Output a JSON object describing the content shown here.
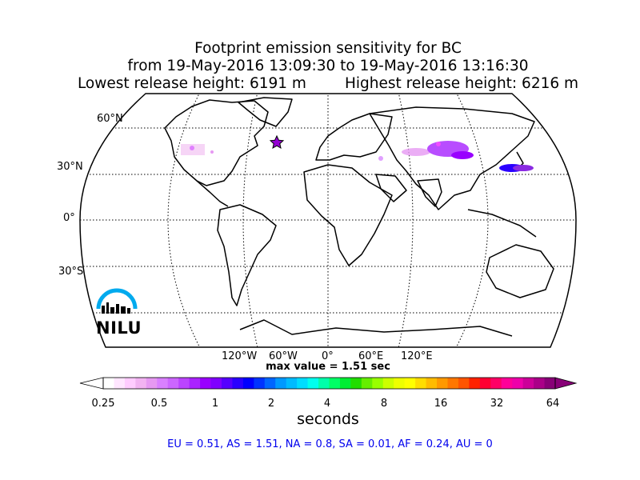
{
  "title": {
    "line1": "Footprint emission sensitivity for BC",
    "line2": "from 19-May-2016 13:09:30 to 19-May-2016 13:16:30",
    "line3_left": "Lowest release height: 6191 m",
    "line3_right": "Highest release height: 6216 m"
  },
  "map": {
    "projection": "robinson",
    "lat_labels": [
      "60°N",
      "30°N",
      "0°",
      "30°S"
    ],
    "lon_labels": [
      "120°W",
      "60°W",
      "0°",
      "60°E",
      "120°E"
    ],
    "marker": {
      "symbol": "star",
      "color": "#9400d3",
      "lat": 46,
      "lon": -30
    }
  },
  "max_value": "max value = 1.51 sec",
  "colorbar": {
    "ticks": [
      "0.25",
      "0.5",
      "1",
      "2",
      "4",
      "8",
      "16",
      "32",
      "64"
    ],
    "unit": "seconds",
    "colors": [
      "#ffffff",
      "#ffe6ff",
      "#ffccff",
      "#f2b3f2",
      "#e699f2",
      "#d980ff",
      "#cc66ff",
      "#bb44ff",
      "#aa22ff",
      "#9900ff",
      "#7f00ff",
      "#5500ff",
      "#2a00ff",
      "#0000ff",
      "#0033ff",
      "#0066ff",
      "#0099ff",
      "#00bbff",
      "#00ddff",
      "#00ffee",
      "#00ffaa",
      "#00ff66",
      "#00ee33",
      "#22dd00",
      "#66ee00",
      "#99ff00",
      "#ccff00",
      "#eeff00",
      "#ffff00",
      "#ffdd00",
      "#ffbb00",
      "#ff9900",
      "#ff7700",
      "#ff5500",
      "#ff2200",
      "#ff0033",
      "#ff0066",
      "#ff0099",
      "#ee00aa",
      "#cc0099",
      "#aa0088",
      "#880077"
    ]
  },
  "summary": "EU = 0.51,  AS = 1.51,  NA = 0.8,  SA = 0.01,  AF = 0.24,  AU = 0",
  "logo_text": "NILU",
  "colors": {
    "coast": "#000000",
    "summary_text": "#0000ee",
    "footprint": "#9400d3"
  }
}
